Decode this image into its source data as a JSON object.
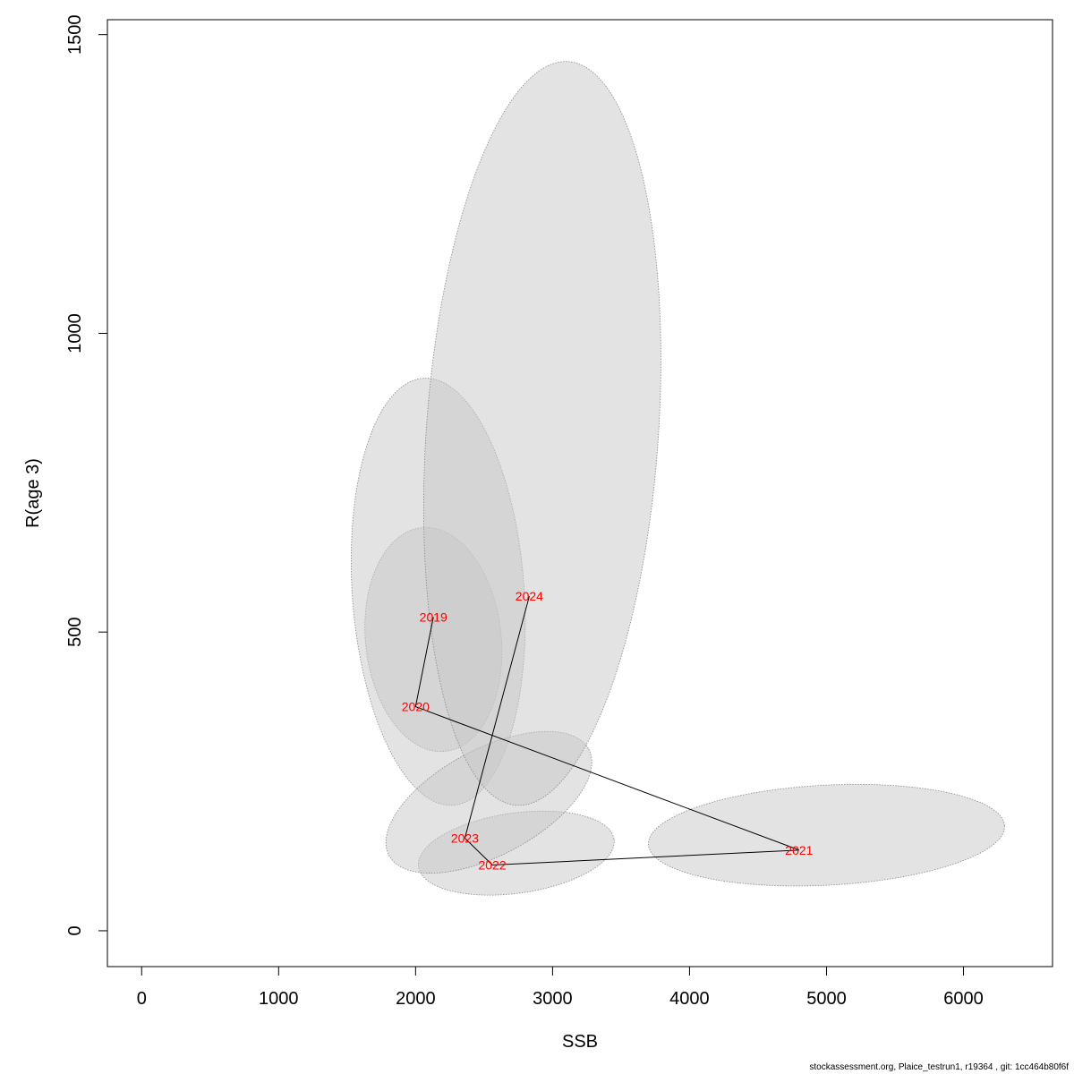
{
  "chart_data": {
    "type": "scatter",
    "xlabel": "SSB",
    "ylabel": "R(age 3)",
    "xlim": [
      -250,
      6650
    ],
    "ylim": [
      -60,
      1525
    ],
    "x_ticks": [
      0,
      1000,
      2000,
      3000,
      4000,
      5000,
      6000
    ],
    "y_ticks": [
      0,
      500,
      1000,
      1500
    ],
    "x_tick_labels": [
      "0",
      "1000",
      "2000",
      "3000",
      "4000",
      "5000",
      "6000"
    ],
    "y_tick_labels": [
      "0",
      "500",
      "1000",
      "1500"
    ],
    "points": [
      {
        "label": "2019",
        "x": 2130,
        "y": 525
      },
      {
        "label": "2020",
        "x": 2000,
        "y": 375
      },
      {
        "label": "2021",
        "x": 4800,
        "y": 135
      },
      {
        "label": "2022",
        "x": 2560,
        "y": 110
      },
      {
        "label": "2023",
        "x": 2360,
        "y": 155
      },
      {
        "label": "2024",
        "x": 2830,
        "y": 560
      }
    ],
    "confidence_ellipses": [
      {
        "year": "2019",
        "x": [
          1630,
          2630
        ],
        "y": [
          300,
          675
        ]
      },
      {
        "year": "2020",
        "x": [
          1530,
          2800
        ],
        "y": [
          210,
          925
        ]
      },
      {
        "year": "2021",
        "x": [
          3700,
          6300
        ],
        "y": [
          75,
          245
        ]
      },
      {
        "year": "2022",
        "x": [
          2020,
          3450
        ],
        "y": [
          60,
          200
        ]
      },
      {
        "year": "2023",
        "x": [
          1770,
          3300
        ],
        "y": [
          110,
          320
        ]
      },
      {
        "year": "2024",
        "x": [
          2060,
          3790
        ],
        "y": [
          210,
          1455
        ]
      }
    ],
    "ellipse_color": "#c8c8c8",
    "point_label_color": "#ff0000",
    "grid": false
  },
  "footer_text": "stockassessment.org, Plaice_testrun1, r19364 , git: 1cc464b80f6f"
}
